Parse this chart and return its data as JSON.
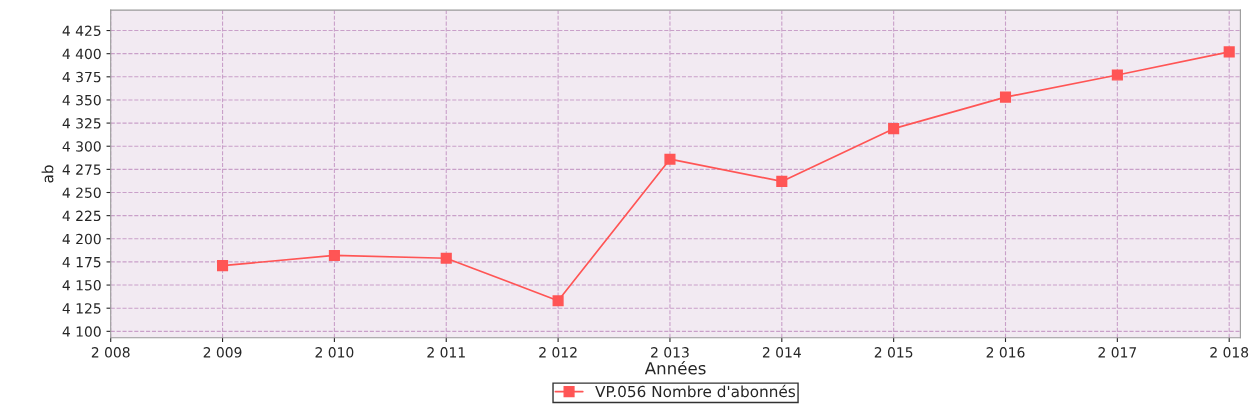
{
  "chart_data": {
    "type": "line",
    "xlabel": "Années",
    "ylabel": "ab",
    "x": [
      2009,
      2010,
      2011,
      2012,
      2013,
      2014,
      2015,
      2016,
      2017,
      2018
    ],
    "series": [
      {
        "name": "VP.056 Nombre d'abonnés",
        "color": "#ff5555",
        "values": [
          4171,
          4182,
          4179,
          4133,
          4286,
          4262,
          4319,
          4353,
          4377,
          4402
        ]
      }
    ],
    "xlim": [
      2008,
      2018.1
    ],
    "ylim": [
      4093,
      4447
    ],
    "xticks": [
      {
        "value": 2008,
        "label": "2 008"
      },
      {
        "value": 2009,
        "label": "2 009"
      },
      {
        "value": 2010,
        "label": "2 010"
      },
      {
        "value": 2011,
        "label": "2 011"
      },
      {
        "value": 2012,
        "label": "2 012"
      },
      {
        "value": 2013,
        "label": "2 013"
      },
      {
        "value": 2014,
        "label": "2 014"
      },
      {
        "value": 2015,
        "label": "2 015"
      },
      {
        "value": 2016,
        "label": "2 016"
      },
      {
        "value": 2017,
        "label": "2 017"
      },
      {
        "value": 2018,
        "label": "2 018"
      }
    ],
    "yticks": [
      {
        "value": 4100,
        "label": "4 100"
      },
      {
        "value": 4125,
        "label": "4 125"
      },
      {
        "value": 4150,
        "label": "4 150"
      },
      {
        "value": 4175,
        "label": "4 175"
      },
      {
        "value": 4200,
        "label": "4 200"
      },
      {
        "value": 4225,
        "label": "4 225"
      },
      {
        "value": 4250,
        "label": "4 250"
      },
      {
        "value": 4275,
        "label": "4 275"
      },
      {
        "value": 4300,
        "label": "4 300"
      },
      {
        "value": 4325,
        "label": "4 325"
      },
      {
        "value": 4350,
        "label": "4 350"
      },
      {
        "value": 4375,
        "label": "4 375"
      },
      {
        "value": 4400,
        "label": "4 400"
      },
      {
        "value": 4425,
        "label": "4 425"
      }
    ],
    "grid": true,
    "legend": "bottom",
    "marker": "square",
    "line_style": "solid"
  }
}
